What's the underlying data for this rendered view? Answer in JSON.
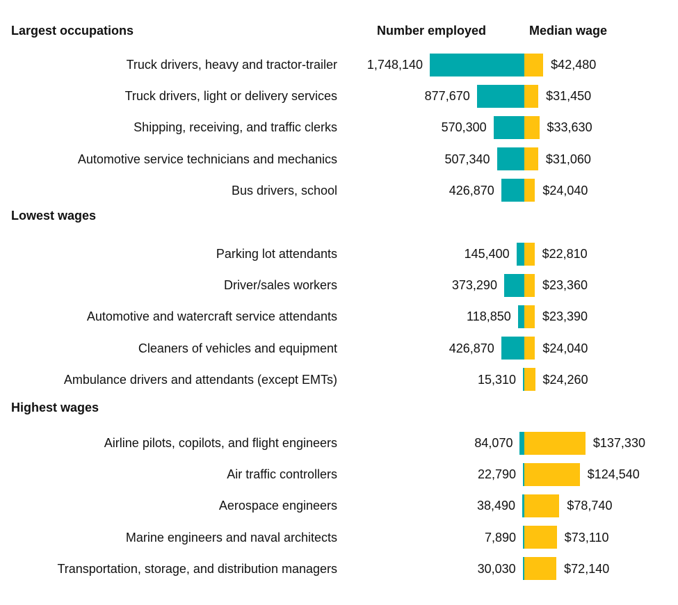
{
  "chart_data": {
    "type": "bar",
    "column_headers": {
      "employment": "Number employed",
      "wage": "Median wage"
    },
    "colors": {
      "employment": "#00A9AC",
      "wage": "#FFC20E"
    },
    "groups": [
      {
        "title": "Largest occupations",
        "rows": [
          {
            "occupation": "Truck drivers, heavy and tractor-trailer",
            "employed": 1748140,
            "employed_label": "1,748,140",
            "wage": 42480,
            "wage_label": "$42,480"
          },
          {
            "occupation": "Truck drivers, light or delivery services",
            "employed": 877670,
            "employed_label": "877,670",
            "wage": 31450,
            "wage_label": "$31,450"
          },
          {
            "occupation": "Shipping, receiving, and traffic clerks",
            "employed": 570300,
            "employed_label": "570,300",
            "wage": 33630,
            "wage_label": "$33,630"
          },
          {
            "occupation": "Automotive service technicians and mechanics",
            "employed": 507340,
            "employed_label": "507,340",
            "wage": 31060,
            "wage_label": "$31,060"
          },
          {
            "occupation": "Bus drivers, school",
            "employed": 426870,
            "employed_label": "426,870",
            "wage": 24040,
            "wage_label": "$24,040"
          }
        ]
      },
      {
        "title": "Lowest wages",
        "rows": [
          {
            "occupation": "Parking lot attendants",
            "employed": 145400,
            "employed_label": "145,400",
            "wage": 22810,
            "wage_label": "$22,810"
          },
          {
            "occupation": "Driver/sales workers",
            "employed": 373290,
            "employed_label": "373,290",
            "wage": 23360,
            "wage_label": "$23,360"
          },
          {
            "occupation": "Automotive and watercraft service attendants",
            "employed": 118850,
            "employed_label": "118,850",
            "wage": 23390,
            "wage_label": "$23,390"
          },
          {
            "occupation": "Cleaners of vehicles and equipment",
            "employed": 426870,
            "employed_label": "426,870",
            "wage": 24040,
            "wage_label": "$24,040"
          },
          {
            "occupation": "Ambulance drivers and attendants (except EMTs)",
            "employed": 15310,
            "employed_label": "15,310",
            "wage": 24260,
            "wage_label": "$24,260"
          }
        ]
      },
      {
        "title": "Highest wages",
        "rows": [
          {
            "occupation": "Airline pilots, copilots, and flight engineers",
            "employed": 84070,
            "employed_label": "84,070",
            "wage": 137330,
            "wage_label": "$137,330"
          },
          {
            "occupation": "Air traffic controllers",
            "employed": 22790,
            "employed_label": "22,790",
            "wage": 124540,
            "wage_label": "$124,540"
          },
          {
            "occupation": "Aerospace engineers",
            "employed": 38490,
            "employed_label": "38,490",
            "wage": 78740,
            "wage_label": "$78,740"
          },
          {
            "occupation": "Marine engineers and naval architects",
            "employed": 7890,
            "employed_label": "7,890",
            "wage": 73110,
            "wage_label": "$73,110"
          },
          {
            "occupation": "Transportation, storage, and distribution managers",
            "employed": 30030,
            "employed_label": "30,030",
            "wage": 72140,
            "wage_label": "$72,140"
          }
        ]
      }
    ]
  }
}
